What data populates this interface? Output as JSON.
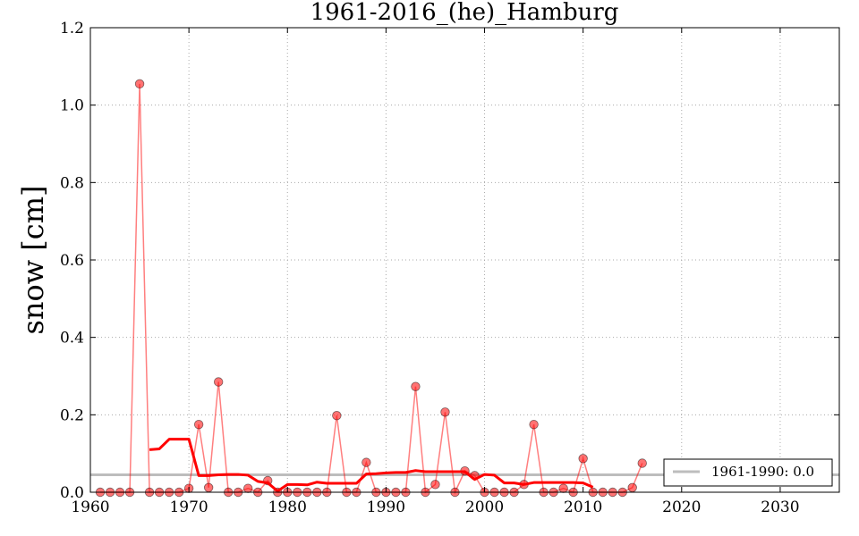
{
  "chart_data": {
    "type": "line",
    "title": "1961-2016_(he)_Hamburg",
    "xlabel": "",
    "ylabel": "snow [cm]",
    "xlim": [
      1960,
      2036
    ],
    "ylim": [
      0.0,
      1.2
    ],
    "grid": true,
    "x_ticks": [
      "1960",
      "1970",
      "1980",
      "1990",
      "2000",
      "2010",
      "2020",
      "2030"
    ],
    "y_ticks": [
      "0.0",
      "0.2",
      "0.4",
      "0.6",
      "0.8",
      "1.0",
      "1.2"
    ],
    "legend": {
      "position": "bottom-right",
      "label": "1961-1990: 0.0"
    },
    "colors": {
      "data": "#ff0000",
      "baseline": "#bdbdbd"
    },
    "series": [
      {
        "kind": "annual_points",
        "x": [
          1961,
          1962,
          1963,
          1964,
          1965,
          1966,
          1967,
          1968,
          1969,
          1970,
          1971,
          1972,
          1973,
          1974,
          1975,
          1976,
          1977,
          1978,
          1979,
          1980,
          1981,
          1982,
          1983,
          1984,
          1985,
          1986,
          1987,
          1988,
          1989,
          1990,
          1991,
          1992,
          1993,
          1994,
          1995,
          1996,
          1997,
          1998,
          1999,
          2000,
          2001,
          2002,
          2003,
          2004,
          2005,
          2006,
          2007,
          2008,
          2009,
          2010,
          2011,
          2012,
          2013,
          2014,
          2015,
          2016
        ],
        "values": [
          0,
          0,
          0,
          0,
          1.055,
          0,
          0,
          0,
          0,
          0.01,
          0.175,
          0.012,
          0.285,
          0,
          0,
          0.01,
          0,
          0.03,
          0,
          0,
          0,
          0,
          0,
          0,
          0.198,
          0,
          0,
          0.077,
          0,
          0,
          0,
          0,
          0.273,
          0,
          0.02,
          0.207,
          0,
          0.055,
          0.043,
          0,
          0,
          0,
          0,
          0.02,
          0.175,
          0,
          0,
          0.01,
          0,
          0.087,
          0,
          0,
          0,
          0,
          0.012,
          0.075
        ]
      },
      {
        "kind": "running_mean",
        "x": [
          1966,
          1967,
          1968,
          1969,
          1970,
          1971,
          1972,
          1973,
          1974,
          1975,
          1976,
          1977,
          1978,
          1979,
          1980,
          1981,
          1982,
          1983,
          1984,
          1985,
          1986,
          1987,
          1988,
          1989,
          1990,
          1991,
          1992,
          1993,
          1994,
          1995,
          1996,
          1997,
          1998,
          1999,
          2000,
          2001,
          2002,
          2003,
          2004,
          2005,
          2006,
          2007,
          2008,
          2009,
          2010,
          2011
        ],
        "values": [
          0.11,
          0.112,
          0.137,
          0.137,
          0.137,
          0.043,
          0.043,
          0.045,
          0.046,
          0.046,
          0.044,
          0.028,
          0.024,
          0.003,
          0.02,
          0.02,
          0.019,
          0.026,
          0.023,
          0.023,
          0.023,
          0.023,
          0.047,
          0.048,
          0.05,
          0.051,
          0.051,
          0.056,
          0.053,
          0.053,
          0.053,
          0.053,
          0.053,
          0.033,
          0.046,
          0.044,
          0.024,
          0.024,
          0.02,
          0.025,
          0.025,
          0.025,
          0.025,
          0.025,
          0.024,
          0.013
        ]
      },
      {
        "kind": "baseline",
        "name": "1961-1990: 0.0",
        "value": 0.045
      }
    ]
  }
}
